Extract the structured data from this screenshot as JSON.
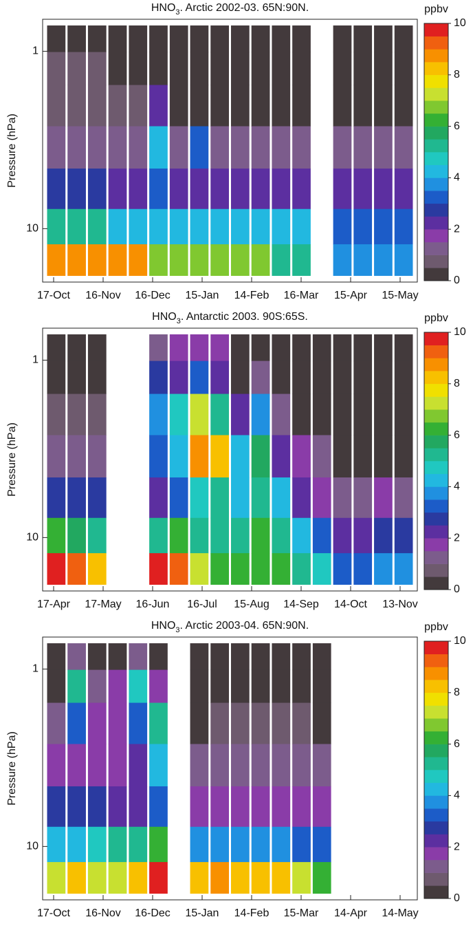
{
  "chart_data": [
    {
      "type": "heatmap",
      "title": [
        "HNO",
        "3",
        ". Arctic 2002-03. 65N:90N."
      ],
      "ylabel": "Pressure (hPa)",
      "categories": [
        "17-Oct",
        "16-Nov",
        "16-Dec",
        "15-Jan",
        "14-Feb",
        "16-Mar",
        "15-Apr",
        "15-May"
      ],
      "log_y": true,
      "ylim": [
        0.66,
        20
      ],
      "yticks": [
        1,
        10
      ],
      "y": [
        0.85,
        1.2,
        2,
        3.5,
        6,
        10,
        15
      ],
      "values": [
        [
          0.3,
          0.3,
          0.3,
          0.3,
          0.3,
          0.3,
          0.3,
          0.3,
          0.3,
          0.3,
          0.3,
          0.3,
          0.3,
          null,
          0.3,
          0.3,
          0.3,
          0.3
        ],
        [
          0.7,
          0.7,
          0.7,
          0.3,
          0.3,
          0.3,
          0.3,
          0.3,
          0.3,
          0.3,
          0.3,
          0.3,
          0.3,
          null,
          0.3,
          0.3,
          0.3,
          0.3
        ],
        [
          0.8,
          0.8,
          0.8,
          0.8,
          0.8,
          2,
          0.3,
          0.3,
          0.3,
          0.3,
          0.3,
          0.3,
          0.3,
          null,
          0.3,
          0.3,
          0.3,
          0.3
        ],
        [
          1,
          1,
          1,
          1,
          1,
          4,
          1,
          3,
          1,
          1,
          1,
          1,
          1,
          null,
          1,
          1,
          1,
          1
        ],
        [
          2.5,
          2.5,
          2.5,
          2,
          2,
          3,
          2,
          2,
          2,
          2,
          2,
          2,
          2,
          null,
          2,
          2,
          2,
          2
        ],
        [
          5,
          5,
          5,
          4,
          4,
          4,
          4,
          4,
          4,
          4,
          4,
          4,
          4,
          null,
          3,
          3,
          3,
          3
        ],
        [
          8.5,
          8.5,
          8.5,
          8.5,
          8.5,
          6.5,
          6.5,
          6.5,
          6.5,
          6.5,
          6.5,
          5,
          5,
          null,
          3.5,
          3.5,
          3.5,
          3.5
        ]
      ],
      "colorbar_label": "ppbv",
      "zlim": [
        0,
        10
      ],
      "zticks": [
        0,
        2,
        4,
        6,
        8,
        10
      ],
      "colors": [
        "#433a3c",
        "#6e5a6e",
        "#7c5c8c",
        "#8a3ca8",
        "#5c2fa0",
        "#2a3aa0",
        "#1c5cc8",
        "#2090e0",
        "#22b8e0",
        "#20c8c0",
        "#20b890",
        "#22a860",
        "#34b034",
        "#80c830",
        "#c8e030",
        "#f0e000",
        "#f8c000",
        "#f89000",
        "#f06010",
        "#e02020"
      ]
    },
    {
      "type": "heatmap",
      "title": [
        "HNO",
        "3",
        ". Antarctic 2003. 90S:65S."
      ],
      "ylabel": "Pressure (hPa)",
      "categories": [
        "17-Apr",
        "17-May",
        "16-Jun",
        "16-Jul",
        "15-Aug",
        "14-Sep",
        "14-Oct",
        "13-Nov"
      ],
      "log_y": true,
      "ylim": [
        0.66,
        20
      ],
      "yticks": [
        1,
        10
      ],
      "y": [
        0.85,
        1.2,
        2,
        3.5,
        6,
        10,
        15
      ],
      "values": [
        [
          0.2,
          0.2,
          0.2,
          null,
          null,
          1,
          1.5,
          1.5,
          1.5,
          0.2,
          0.2,
          0.2,
          0.2,
          0.2,
          0.2,
          0.2,
          0.2,
          0.2
        ],
        [
          0.3,
          0.3,
          0.3,
          null,
          null,
          2.5,
          2,
          3,
          2,
          0.3,
          1,
          0.2,
          0.2,
          0.2,
          0.2,
          0.2,
          0.2,
          0.2
        ],
        [
          0.5,
          0.5,
          0.5,
          null,
          null,
          3.5,
          4.5,
          7,
          5,
          2,
          3.5,
          1,
          0.3,
          0.3,
          0.3,
          0.3,
          0.3,
          0.3
        ],
        [
          1,
          1,
          1,
          null,
          null,
          3,
          4,
          8.5,
          8,
          4,
          5.5,
          2,
          1.5,
          1,
          0.3,
          0.3,
          0.3,
          0.3
        ],
        [
          2.5,
          2.5,
          2.5,
          null,
          null,
          2,
          3,
          4.5,
          5,
          4,
          5,
          4,
          2,
          1.5,
          1,
          1,
          1.5,
          1
        ],
        [
          6,
          5.5,
          5,
          null,
          null,
          5,
          6,
          5,
          5,
          5,
          6,
          5,
          4,
          3,
          2,
          2,
          2.5,
          2.5
        ],
        [
          10,
          9,
          8,
          null,
          null,
          9.5,
          9,
          7,
          6,
          6,
          6,
          6,
          5,
          4.5,
          3,
          3,
          3.5,
          3.5
        ]
      ],
      "colorbar_label": "ppbv",
      "zlim": [
        0,
        10
      ],
      "zticks": [
        0,
        2,
        4,
        6,
        8,
        10
      ],
      "colors": [
        "#433a3c",
        "#6e5a6e",
        "#7c5c8c",
        "#8a3ca8",
        "#5c2fa0",
        "#2a3aa0",
        "#1c5cc8",
        "#2090e0",
        "#22b8e0",
        "#20c8c0",
        "#20b890",
        "#22a860",
        "#34b034",
        "#80c830",
        "#c8e030",
        "#f0e000",
        "#f8c000",
        "#f89000",
        "#f06010",
        "#e02020"
      ]
    },
    {
      "type": "heatmap",
      "title": [
        "HNO",
        "3",
        ". Arctic 2003-04. 65N:90N."
      ],
      "ylabel": "Pressure (hPa)",
      "categories": [
        "17-Oct",
        "16-Nov",
        "16-Dec",
        "15-Jan",
        "14-Feb",
        "15-Mar",
        "14-Apr",
        "14-May"
      ],
      "log_y": true,
      "ylim": [
        0.66,
        20
      ],
      "yticks": [
        1,
        10
      ],
      "y": [
        0.85,
        1.2,
        2,
        3.5,
        6,
        10,
        15
      ],
      "values": [
        [
          0.2,
          1,
          0.2,
          0.2,
          1,
          0.2,
          null,
          0.2,
          0.2,
          0.2,
          0.2,
          0.2,
          0.2,
          0.2,
          null,
          null,
          null,
          null
        ],
        [
          0.3,
          5,
          1,
          1.5,
          4.5,
          1.5,
          null,
          0.3,
          0.3,
          0.3,
          0.3,
          0.3,
          0.3,
          0.3,
          null,
          null,
          null,
          null
        ],
        [
          1,
          3,
          1.5,
          1.5,
          3,
          5,
          null,
          0.3,
          0.5,
          0.5,
          0.5,
          0.5,
          0.5,
          0.3,
          null,
          null,
          null,
          null
        ],
        [
          1.5,
          1.5,
          1.5,
          1.5,
          2,
          4,
          null,
          1,
          1,
          1,
          1,
          1,
          1,
          1,
          null,
          null,
          null,
          null
        ],
        [
          2.5,
          2.5,
          2.5,
          2,
          2,
          3,
          null,
          1.5,
          1.5,
          1.5,
          1.5,
          1.5,
          1.5,
          1.5,
          null,
          null,
          null,
          null
        ],
        [
          4,
          4,
          4.5,
          5,
          5,
          6,
          null,
          3.5,
          3.5,
          3.5,
          3.5,
          3.5,
          3,
          3,
          null,
          null,
          null,
          null
        ],
        [
          7,
          8,
          7,
          7,
          8,
          9.5,
          null,
          8,
          8.5,
          8,
          8,
          8,
          7,
          6,
          null,
          null,
          null,
          null
        ]
      ],
      "colorbar_label": "ppbv",
      "zlim": [
        0,
        10
      ],
      "zticks": [
        0,
        2,
        4,
        6,
        8,
        10
      ],
      "colors": [
        "#433a3c",
        "#6e5a6e",
        "#7c5c8c",
        "#8a3ca8",
        "#5c2fa0",
        "#2a3aa0",
        "#1c5cc8",
        "#2090e0",
        "#22b8e0",
        "#20c8c0",
        "#20b890",
        "#22a860",
        "#34b034",
        "#80c830",
        "#c8e030",
        "#f0e000",
        "#f8c000",
        "#f89000",
        "#f06010",
        "#e02020"
      ]
    }
  ]
}
